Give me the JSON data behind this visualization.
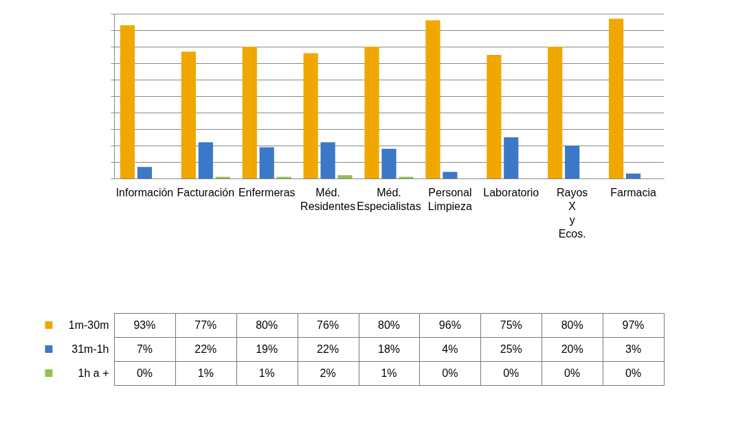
{
  "chart_data": {
    "type": "bar",
    "categories": [
      "Información",
      "Facturación",
      "Enfermeras",
      "Méd. Residentes",
      "Méd. Especialistas",
      "Personal Limpieza",
      "Laboratorio",
      "Rayos X y Ecos.",
      "Farmacia"
    ],
    "series": [
      {
        "name": "1m-30m",
        "color": "#f0a800",
        "values": [
          93,
          77,
          80,
          76,
          80,
          96,
          75,
          80,
          97
        ],
        "value_labels": [
          "93%",
          "77%",
          "80%",
          "76%",
          "80%",
          "96%",
          "75%",
          "80%",
          "97%"
        ]
      },
      {
        "name": "31m-1h",
        "color": "#3b78c8",
        "values": [
          7,
          22,
          19,
          22,
          18,
          4,
          25,
          20,
          3
        ],
        "value_labels": [
          "7%",
          "22%",
          "19%",
          "22%",
          "18%",
          "4%",
          "25%",
          "20%",
          "3%"
        ]
      },
      {
        "name": "1h a +",
        "color": "#92c050",
        "values": [
          0,
          1,
          1,
          2,
          1,
          0,
          0,
          0,
          0
        ],
        "value_labels": [
          "0%",
          "1%",
          "1%",
          "2%",
          "1%",
          "0%",
          "0%",
          "0%",
          "0%"
        ]
      }
    ],
    "ylim": [
      0,
      100
    ],
    "yticks": [
      {
        "value": 0,
        "label": null
      },
      {
        "value": 10,
        "label": null
      },
      {
        "value": 20,
        "label": null
      },
      {
        "value": 30,
        "label": null
      },
      {
        "value": 40,
        "label": null
      },
      {
        "value": 50,
        "label": null
      },
      {
        "value": 60,
        "label": null
      },
      {
        "value": 70,
        "label": null
      },
      {
        "value": 80,
        "label": null
      },
      {
        "value": 90,
        "label": null
      },
      {
        "value": 100,
        "label": null
      }
    ],
    "tick_labels": "x",
    "grid": "y",
    "legend": "bottom"
  }
}
